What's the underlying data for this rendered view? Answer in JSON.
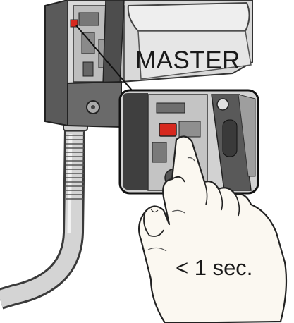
{
  "labels": {
    "device_name": "MASTER",
    "press_duration": "< 1 sec."
  },
  "colors": {
    "button_red": "#d6281e",
    "housing_dark": "#4d4d4d",
    "housing_light": "#d9d9d9",
    "skin": "#fbf8f1",
    "conduit": "#d4d4d4"
  },
  "icons": {
    "hand": "hand-pressing-icon",
    "button": "reset-button-icon"
  }
}
